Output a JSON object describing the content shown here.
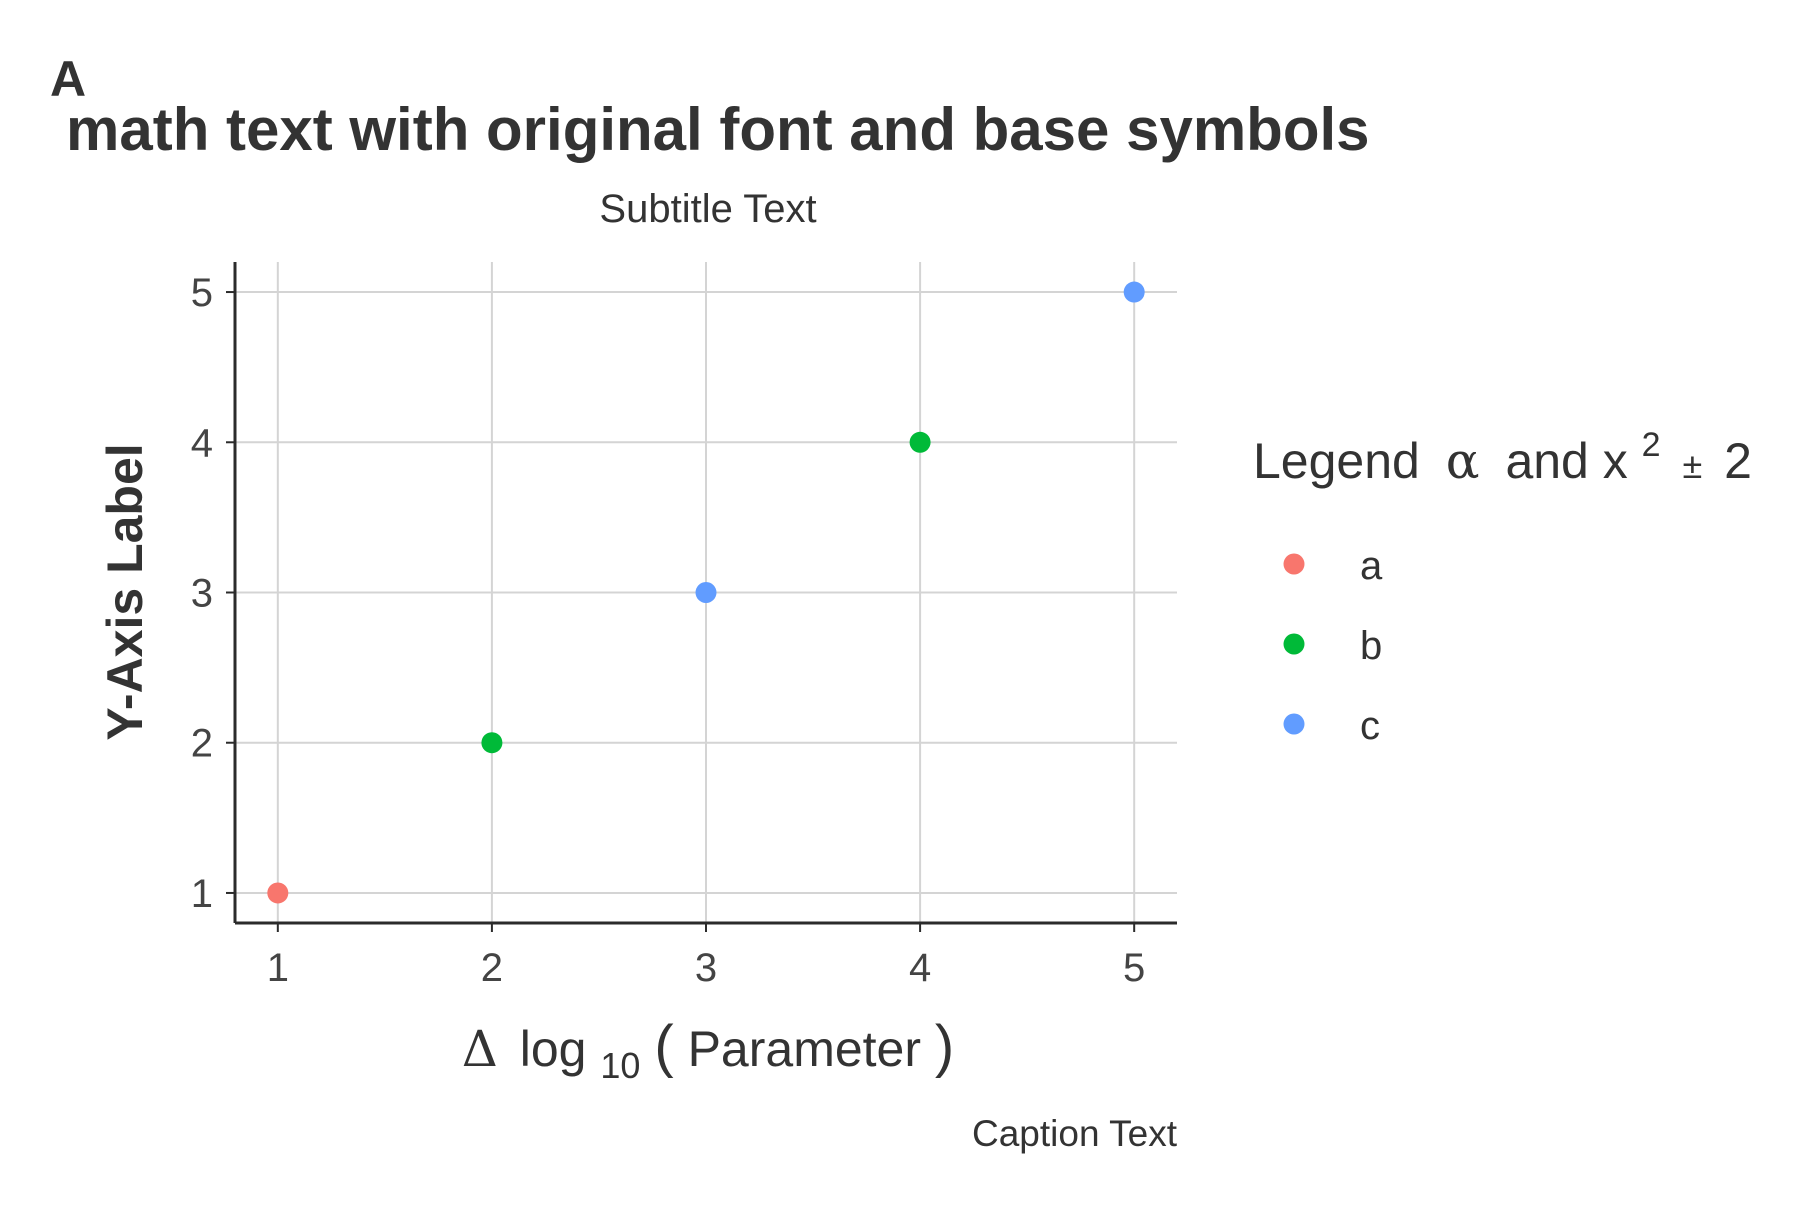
{
  "chart_data": {
    "type": "scatter",
    "tag": "A",
    "title": "math text with original font and base symbols",
    "subtitle": "Subtitle Text",
    "caption": "Caption Text",
    "xlabel": {
      "delta": "Δ",
      "log": "log",
      "subscript": "10",
      "arg_open": "(",
      "arg": "Parameter",
      "arg_close": ")"
    },
    "ylabel": "Y-Axis Label",
    "xlim": [
      0.8,
      5.2
    ],
    "ylim": [
      0.8,
      5.2
    ],
    "x_ticks": [
      1,
      2,
      3,
      4,
      5
    ],
    "y_ticks": [
      1,
      2,
      3,
      4,
      5
    ],
    "grid": true,
    "legend": {
      "position": "right",
      "title": {
        "prefix": "Legend",
        "alpha": "α",
        "and_x": "and x",
        "superscript": "2",
        "pm": "±",
        "two": "2"
      },
      "entries": [
        {
          "label": "a",
          "color": "#F8766D"
        },
        {
          "label": "b",
          "color": "#00BA38"
        },
        {
          "label": "c",
          "color": "#619CFF"
        }
      ]
    },
    "points": [
      {
        "x": 1,
        "y": 1,
        "group": "a"
      },
      {
        "x": 2,
        "y": 2,
        "group": "b"
      },
      {
        "x": 3,
        "y": 3,
        "group": "c"
      },
      {
        "x": 4,
        "y": 4,
        "group": "b"
      },
      {
        "x": 5,
        "y": 5,
        "group": "c"
      }
    ],
    "colors": {
      "a": "#F8766D",
      "b": "#00BA38",
      "c": "#619CFF",
      "grid": "#d4d4d4",
      "axis": "#2b2b2b",
      "text": "#333333",
      "tick_text": "#444444"
    }
  }
}
